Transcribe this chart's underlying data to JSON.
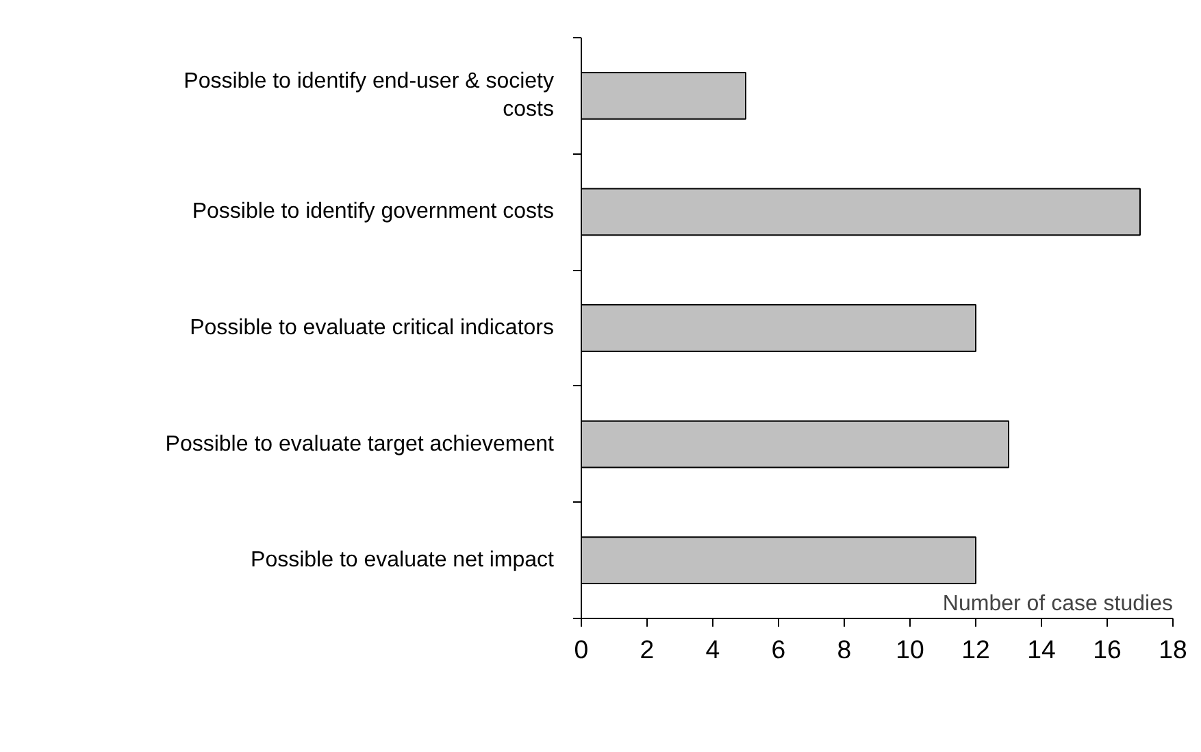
{
  "chart_data": {
    "type": "bar",
    "orientation": "horizontal",
    "xlabel": "Number of case studies",
    "categories": [
      "Possible to identify end-user & society costs",
      "Possible to identify government costs",
      "Possible to evaluate critical indicators",
      "Possible to evaluate target achievement",
      "Possible to evaluate net impact"
    ],
    "values": [
      5,
      17,
      12,
      13,
      12
    ],
    "color": "#c0c0c0",
    "xlim": [
      0,
      18
    ],
    "xticks": [
      0,
      2,
      4,
      6,
      8,
      10,
      12,
      14,
      16,
      18
    ],
    "grid": false
  }
}
